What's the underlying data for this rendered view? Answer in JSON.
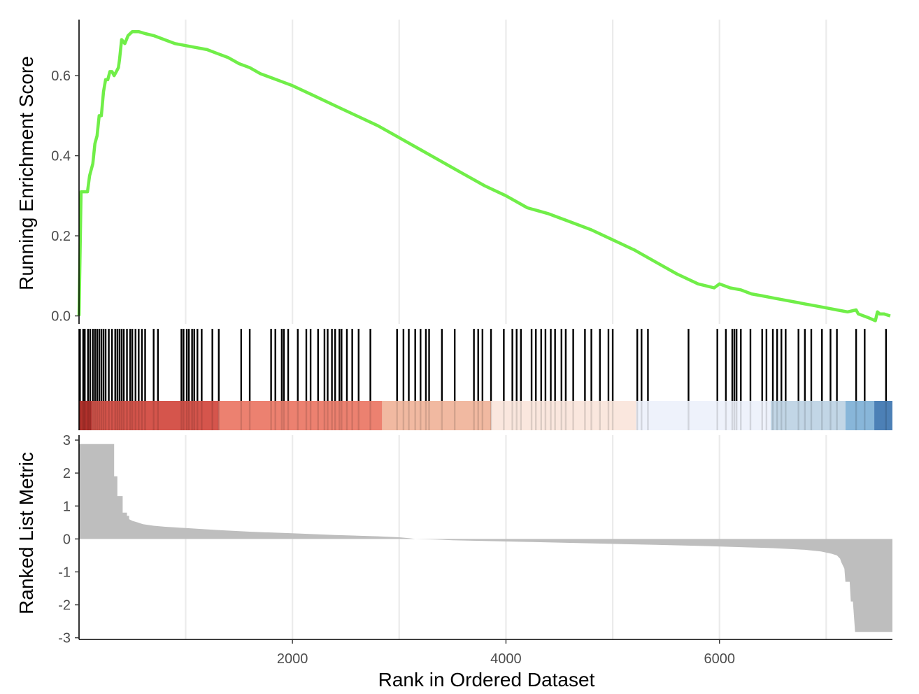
{
  "chart_data": {
    "type": "line",
    "xlabel": "Rank in Ordered Dataset",
    "x_ticks": [
      2000,
      4000,
      6000
    ],
    "x_tick_labels": [
      "2000",
      "4000",
      "6000"
    ],
    "xlim": [
      1,
      7620
    ],
    "colors": {
      "es_line": "#70ee48",
      "metric_fill": "#bebebe",
      "hit": "#000000",
      "grid": "#ebebeb"
    },
    "top_panel": {
      "ylabel": "Running Enrichment Score",
      "ylim": [
        -0.02,
        0.74
      ],
      "y_ticks": [
        0.0,
        0.2,
        0.4,
        0.6
      ],
      "y_tick_labels": [
        "0.0",
        "0.2",
        "0.4",
        "0.6"
      ],
      "series": [
        {
          "x": [
            1,
            20,
            40,
            80,
            100,
            130,
            150,
            170,
            190,
            210,
            230,
            250,
            270,
            290,
            310,
            330,
            350,
            370,
            380,
            400,
            430,
            460,
            500,
            560,
            620,
            700,
            800,
            900,
            1000,
            1100,
            1200,
            1300,
            1400,
            1500,
            1600,
            1700,
            1800,
            1900,
            2000,
            2200,
            2400,
            2600,
            2800,
            3000,
            3200,
            3400,
            3600,
            3800,
            4000,
            4200,
            4400,
            4600,
            4800,
            5000,
            5200,
            5400,
            5600,
            5800,
            5950,
            6000,
            6100,
            6200,
            6300,
            6400,
            6500,
            6600,
            6700,
            6800,
            6900,
            7000,
            7100,
            7200,
            7280,
            7300,
            7400,
            7460,
            7480,
            7500,
            7540,
            7600
          ],
          "y": [
            0.0,
            0.31,
            0.31,
            0.31,
            0.35,
            0.38,
            0.43,
            0.45,
            0.5,
            0.5,
            0.56,
            0.59,
            0.59,
            0.61,
            0.61,
            0.6,
            0.61,
            0.62,
            0.64,
            0.69,
            0.68,
            0.7,
            0.71,
            0.71,
            0.705,
            0.7,
            0.69,
            0.68,
            0.675,
            0.67,
            0.665,
            0.655,
            0.645,
            0.63,
            0.62,
            0.605,
            0.595,
            0.585,
            0.575,
            0.55,
            0.525,
            0.5,
            0.475,
            0.445,
            0.415,
            0.385,
            0.355,
            0.325,
            0.3,
            0.27,
            0.255,
            0.235,
            0.215,
            0.19,
            0.165,
            0.135,
            0.105,
            0.08,
            0.07,
            0.08,
            0.07,
            0.065,
            0.055,
            0.05,
            0.045,
            0.04,
            0.035,
            0.03,
            0.025,
            0.02,
            0.015,
            0.01,
            0.015,
            0.005,
            -0.005,
            -0.012,
            0.01,
            0.005,
            0.005,
            0.0
          ]
        }
      ]
    },
    "hits": [
      10,
      40,
      55,
      85,
      105,
      130,
      150,
      170,
      190,
      210,
      230,
      250,
      280,
      310,
      340,
      360,
      380,
      400,
      420,
      450,
      480,
      500,
      530,
      560,
      590,
      620,
      700,
      740,
      960,
      980,
      1010,
      1030,
      1060,
      1080,
      1110,
      1150,
      1250,
      1310,
      1520,
      1600,
      1800,
      1840,
      1900,
      1920,
      1960,
      2050,
      2130,
      2170,
      2240,
      2300,
      2330,
      2370,
      2400,
      2440,
      2460,
      2510,
      2560,
      2620,
      2730,
      2980,
      3040,
      3090,
      3150,
      3200,
      3250,
      3280,
      3400,
      3520,
      3700,
      3740,
      3780,
      3860,
      3980,
      4060,
      4100,
      4140,
      4240,
      4280,
      4330,
      4370,
      4420,
      4460,
      4520,
      4560,
      4630,
      4740,
      4800,
      4880,
      4960,
      5000,
      5230,
      5270,
      5330,
      5710,
      5980,
      6060,
      6120,
      6140,
      6160,
      6200,
      6290,
      6400,
      6440,
      6500,
      6540,
      6580,
      6620,
      6740,
      6800,
      6860,
      6960,
      7040,
      7100,
      7280,
      7360,
      7560
    ],
    "heat_segments": [
      {
        "x0": 1,
        "x1": 120,
        "color": "#b2312c"
      },
      {
        "x0": 120,
        "x1": 1310,
        "color": "#d5554c"
      },
      {
        "x0": 1310,
        "x1": 2840,
        "color": "#ec8170"
      },
      {
        "x0": 2840,
        "x1": 3860,
        "color": "#f1b9a1"
      },
      {
        "x0": 3860,
        "x1": 5220,
        "color": "#fae7de"
      },
      {
        "x0": 5220,
        "x1": 6480,
        "color": "#eef2fb"
      },
      {
        "x0": 6480,
        "x1": 7180,
        "color": "#c2d6e6"
      },
      {
        "x0": 7180,
        "x1": 7450,
        "color": "#88b6d9"
      },
      {
        "x0": 7450,
        "x1": 7620,
        "color": "#4c80b6"
      }
    ],
    "bottom_panel": {
      "ylabel": "Ranked List Metric",
      "ylim": [
        -3.05,
        3.15
      ],
      "y_ticks": [
        3,
        2,
        1,
        0,
        -1,
        -2,
        -3
      ],
      "y_tick_labels": [
        "3",
        "2",
        "1",
        "0",
        "-1",
        "-2",
        "-3"
      ],
      "series": [
        {
          "x": [
            1,
            330,
            330,
            360,
            360,
            410,
            410,
            450,
            450,
            470,
            470,
            500,
            550,
            600,
            700,
            800,
            1000,
            1300,
            1600,
            2000,
            2400,
            2800,
            3000,
            3100,
            3150,
            3350,
            3500,
            3800,
            4200,
            4600,
            5000,
            5400,
            5800,
            6200,
            6500,
            6800,
            6950,
            7050,
            7100,
            7130,
            7140,
            7170,
            7180,
            7220,
            7230,
            7250,
            7270,
            7620
          ],
          "y": [
            2.88,
            2.88,
            1.9,
            1.9,
            1.3,
            1.3,
            0.8,
            0.8,
            0.7,
            0.7,
            0.6,
            0.55,
            0.5,
            0.45,
            0.4,
            0.37,
            0.33,
            0.27,
            0.22,
            0.17,
            0.12,
            0.08,
            0.05,
            0.02,
            0.0,
            -0.02,
            -0.04,
            -0.06,
            -0.09,
            -0.12,
            -0.15,
            -0.18,
            -0.21,
            -0.25,
            -0.28,
            -0.33,
            -0.38,
            -0.45,
            -0.5,
            -0.6,
            -0.7,
            -0.9,
            -1.3,
            -1.3,
            -1.9,
            -1.9,
            -2.82,
            -2.82
          ]
        }
      ]
    }
  }
}
